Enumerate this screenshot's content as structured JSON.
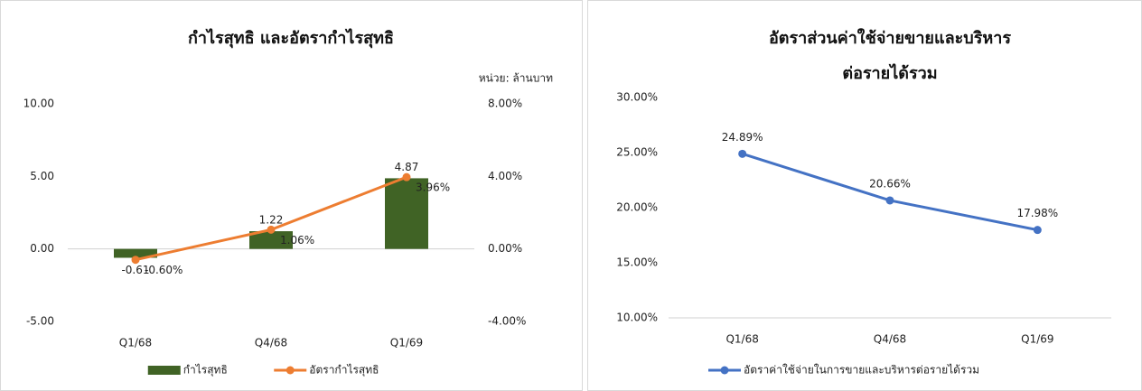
{
  "chart_data": [
    {
      "type": "combo",
      "title": "กำไรสุทธิ และอัตรากำไรสุทธิ",
      "annotation": "หน่วย: ล้านบาท",
      "categories": [
        "Q1/68",
        "Q4/68",
        "Q1/69"
      ],
      "series": [
        {
          "name": "กำไรสุทธิ",
          "type": "bar",
          "color": "#406325",
          "values": [
            -0.61,
            1.22,
            4.87
          ]
        },
        {
          "name": "อัตรากำไรสุทธิ",
          "type": "line",
          "axis": "y2",
          "color": "#ed7d31",
          "values": [
            -0.6,
            1.06,
            3.96
          ],
          "value_labels": [
            "-0.60%",
            "1.06%",
            "3.96%"
          ]
        }
      ],
      "ylim": [
        -5,
        10
      ],
      "yticks": [
        {
          "value": -5,
          "label": "-5.00"
        },
        {
          "value": 0,
          "label": "0.00"
        },
        {
          "value": 5,
          "label": "5.00"
        },
        {
          "value": 10,
          "label": "10.00"
        }
      ],
      "y2lim": [
        -4,
        8
      ],
      "y2ticks": [
        {
          "value": -4,
          "label": "-4.00%"
        },
        {
          "value": 0,
          "label": "0.00%"
        },
        {
          "value": 4,
          "label": "4.00%"
        },
        {
          "value": 8,
          "label": "8.00%"
        }
      ],
      "grid": false,
      "legend": "bottom"
    },
    {
      "type": "line",
      "title": [
        "อัตราส่วนค่าใช้จ่ายขายและบริหาร",
        "ต่อรายได้รวม"
      ],
      "categories": [
        "Q1/68",
        "Q4/68",
        "Q1/69"
      ],
      "series": [
        {
          "name": "อัตราค่าใช้จ่ายในการขายและบริหารต่อรายได้รวม",
          "color": "#4472c4",
          "values": [
            24.89,
            20.66,
            17.98
          ],
          "value_labels": [
            "24.89%",
            "20.66%",
            "17.98%"
          ]
        }
      ],
      "ylim": [
        10,
        30
      ],
      "yticks": [
        {
          "value": 10,
          "label": "10.00%"
        },
        {
          "value": 15,
          "label": "15.00%"
        },
        {
          "value": 20,
          "label": "20.00%"
        },
        {
          "value": 25,
          "label": "25.00%"
        },
        {
          "value": 30,
          "label": "30.00%"
        }
      ],
      "grid": false,
      "legend": "bottom"
    }
  ]
}
